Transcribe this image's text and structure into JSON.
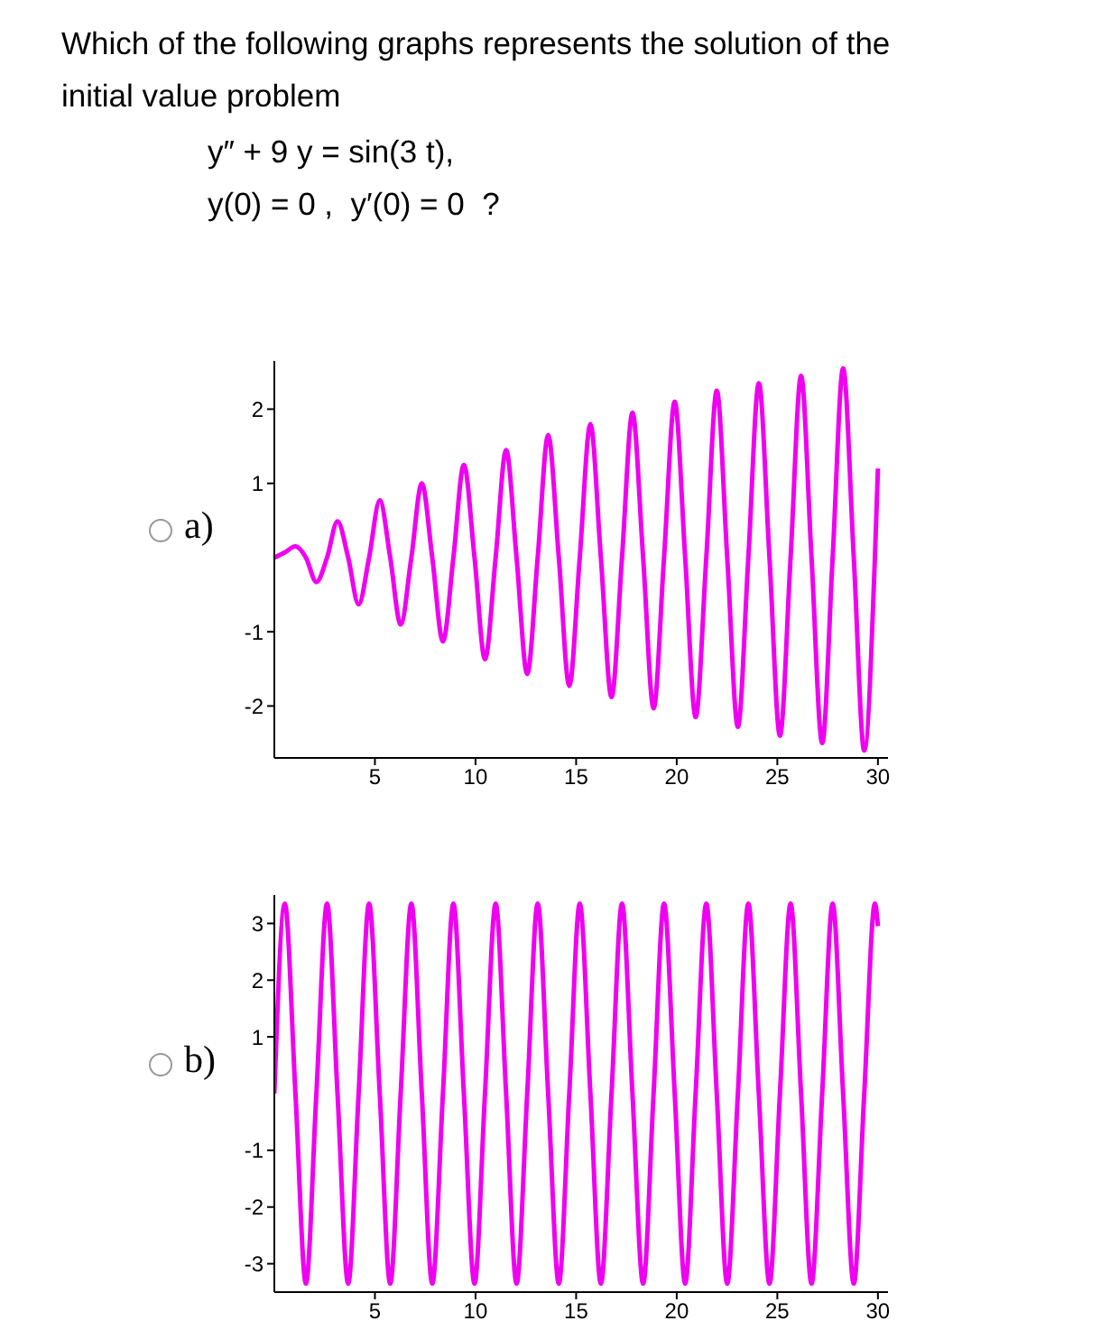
{
  "chart_data": [
    {
      "type": "line",
      "title": "Which of the following graphs represents the solution of the initial value problem",
      "subtitle": "y″ + 9 y = sin(3 t),\ny(0) = 0 ,  y′(0) = 0  ?",
      "annotations": [
        "a)"
      ],
      "x": [
        0,
        0.52,
        1.05,
        1.57,
        2.09,
        2.62,
        3.14,
        3.67,
        4.19,
        4.71,
        5.24,
        5.76,
        6.28,
        6.81,
        7.33,
        7.85,
        8.38,
        8.9,
        9.42,
        9.95,
        10.47,
        11.0,
        11.52,
        12.04,
        12.57,
        13.09,
        13.61,
        14.14,
        14.66,
        15.18,
        15.71,
        16.23,
        16.76,
        17.28,
        17.8,
        18.33,
        18.85,
        19.37,
        19.9,
        20.42,
        20.94,
        21.47,
        21.99,
        22.51,
        23.04,
        23.56,
        24.08,
        24.61,
        25.13,
        25.66,
        26.18,
        26.7,
        27.23,
        27.75,
        28.27,
        28.8,
        29.32,
        29.85,
        30
      ],
      "series": [
        {
          "color": "#f000f0",
          "values": [
            0,
            0.07,
            0.15,
            0,
            -0.33,
            0,
            0.49,
            0,
            -0.63,
            0,
            0.77,
            0,
            -0.9,
            0,
            1.0,
            0,
            -1.13,
            0,
            1.25,
            0,
            -1.37,
            0,
            1.45,
            0,
            -1.57,
            0,
            1.65,
            0,
            -1.73,
            0,
            1.8,
            0,
            -1.88,
            0,
            1.95,
            0,
            -2.03,
            0,
            2.1,
            0,
            -2.15,
            0,
            2.25,
            0,
            -2.28,
            0,
            2.35,
            0,
            -2.4,
            0,
            2.45,
            0,
            -2.5,
            0,
            2.55,
            0,
            -2.6,
            0,
            1.2
          ]
        }
      ],
      "xlim": [
        0,
        30.5
      ],
      "ylim": [
        -2.7,
        2.65
      ],
      "xticks": [
        5,
        10,
        15,
        20,
        25,
        30
      ],
      "yticks": [
        -2,
        -1,
        1,
        2
      ]
    },
    {
      "type": "line",
      "annotations": [
        "b)"
      ],
      "x": [
        0,
        0.52,
        1.05,
        1.57,
        2.09,
        2.62,
        3.14,
        3.67,
        4.19,
        4.71,
        5.24,
        5.76,
        6.28,
        6.81,
        7.33,
        7.85,
        8.38,
        8.9,
        9.42,
        9.95,
        10.47,
        11.0,
        11.52,
        12.04,
        12.57,
        13.09,
        13.61,
        14.14,
        14.66,
        15.18,
        15.71,
        16.23,
        16.76,
        17.28,
        17.8,
        18.33,
        18.85,
        19.37,
        19.9,
        20.42,
        20.94,
        21.47,
        21.99,
        22.51,
        23.04,
        23.56,
        24.08,
        24.61,
        25.13,
        25.66,
        26.18,
        26.7,
        27.23,
        27.75,
        28.27,
        28.8,
        29.32,
        29.85,
        30
      ],
      "series": [
        {
          "color": "#f000f0",
          "values": [
            0,
            3.35,
            0,
            -3.35,
            0,
            3.35,
            0,
            -3.35,
            0,
            3.35,
            0,
            -3.35,
            0,
            3.35,
            0,
            -3.35,
            0,
            3.35,
            0,
            -3.35,
            0,
            3.35,
            0,
            -3.35,
            0,
            3.35,
            0,
            -3.35,
            0,
            3.35,
            0,
            -3.35,
            0,
            3.35,
            0,
            -3.35,
            0,
            3.35,
            0,
            -3.35,
            0,
            3.35,
            0,
            -3.35,
            0,
            3.35,
            0,
            -3.35,
            0,
            3.35,
            0,
            -3.35,
            0,
            3.35,
            0,
            -3.35,
            0,
            3.35,
            2.95
          ]
        }
      ],
      "xlim": [
        0,
        30.5
      ],
      "ylim": [
        -3.5,
        3.5
      ],
      "xticks": [
        5,
        10,
        15,
        20,
        25,
        30
      ],
      "yticks": [
        -3,
        -2,
        -1,
        1,
        2,
        3
      ]
    }
  ]
}
